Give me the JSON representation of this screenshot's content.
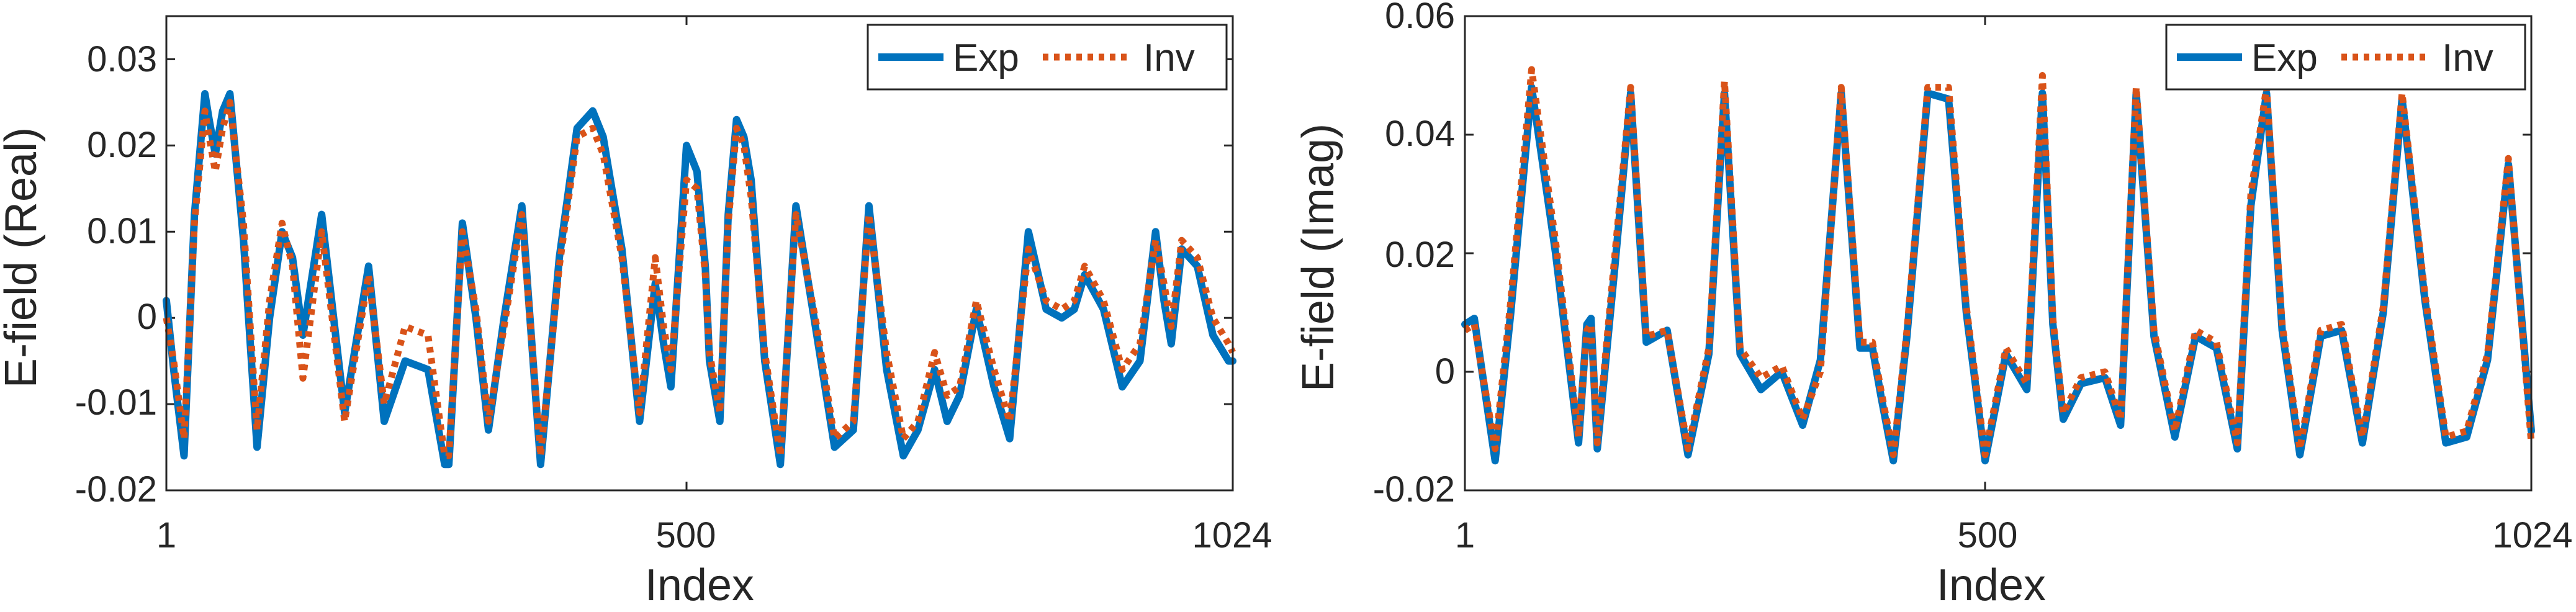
{
  "chart_data": [
    {
      "type": "line",
      "title": "",
      "xlabel": "Index",
      "ylabel": "E-field (Real)",
      "xlim": [
        1,
        1024
      ],
      "ylim": [
        -0.02,
        0.035
      ],
      "xticks": [
        1,
        500,
        1024
      ],
      "xtick_labels": [
        "1",
        "500",
        "1024"
      ],
      "yticks": [
        -0.02,
        -0.01,
        0,
        0.01,
        0.02,
        0.03
      ],
      "ytick_labels": [
        "-0.02",
        "-0.01",
        "0",
        "0.01",
        "0.02",
        "0.03"
      ],
      "grid": false,
      "legend_position": "top-right",
      "series": [
        {
          "name": "Exp",
          "color": "#0072BD",
          "style": "solid",
          "x": [
            1,
            8,
            18,
            28,
            38,
            42,
            48,
            55,
            62,
            75,
            88,
            100,
            112,
            122,
            132,
            150,
            172,
            195,
            210,
            230,
            252,
            268,
            272,
            285,
            298,
            310,
            325,
            342,
            360,
            378,
            395,
            410,
            420,
            438,
            455,
            470,
            478,
            485,
            500,
            510,
            518,
            522,
            532,
            540,
            548,
            555,
            562,
            575,
            590,
            605,
            625,
            642,
            660,
            675,
            692,
            708,
            722,
            738,
            750,
            762,
            778,
            795,
            810,
            828,
            845,
            860,
            872,
            882,
            900,
            918,
            935,
            950,
            958,
            965,
            975,
            990,
            1005,
            1020,
            1024
          ],
          "y": [
            0.002,
            -0.006,
            -0.016,
            0.012,
            0.026,
            0.023,
            0.019,
            0.024,
            0.026,
            0.009,
            -0.015,
            0.0,
            0.01,
            0.007,
            -0.002,
            0.012,
            -0.011,
            0.006,
            -0.012,
            -0.005,
            -0.006,
            -0.017,
            -0.017,
            0.011,
            0.0,
            -0.013,
            0.0,
            0.013,
            -0.017,
            0.007,
            0.022,
            0.024,
            0.021,
            0.008,
            -0.012,
            0.004,
            -0.003,
            -0.008,
            0.02,
            0.017,
            0.006,
            -0.005,
            -0.012,
            0.012,
            0.023,
            0.021,
            0.016,
            -0.005,
            -0.017,
            0.013,
            -0.002,
            -0.015,
            -0.013,
            0.013,
            -0.006,
            -0.016,
            -0.013,
            -0.006,
            -0.012,
            -0.009,
            0.001,
            -0.008,
            -0.014,
            0.01,
            0.001,
            0.0,
            0.001,
            0.005,
            0.001,
            -0.008,
            -0.005,
            0.01,
            0.002,
            -0.003,
            0.008,
            0.006,
            -0.002,
            -0.005,
            -0.005
          ]
        },
        {
          "name": "Inv",
          "color": "#D95319",
          "style": "dotted",
          "x": [
            1,
            8,
            18,
            28,
            38,
            42,
            48,
            55,
            62,
            75,
            88,
            100,
            112,
            122,
            132,
            150,
            172,
            195,
            210,
            230,
            252,
            268,
            272,
            285,
            298,
            310,
            325,
            342,
            360,
            378,
            395,
            410,
            420,
            438,
            455,
            470,
            478,
            485,
            500,
            510,
            518,
            522,
            532,
            540,
            548,
            555,
            562,
            575,
            590,
            605,
            625,
            642,
            660,
            675,
            692,
            708,
            722,
            738,
            750,
            762,
            778,
            795,
            810,
            828,
            845,
            860,
            872,
            882,
            900,
            918,
            935,
            950,
            958,
            965,
            975,
            990,
            1005,
            1020,
            1024
          ],
          "y": [
            0.0,
            -0.005,
            -0.014,
            0.011,
            0.024,
            0.021,
            0.017,
            0.022,
            0.025,
            0.011,
            -0.013,
            0.002,
            0.011,
            0.006,
            -0.007,
            0.01,
            -0.012,
            0.005,
            -0.01,
            -0.001,
            -0.002,
            -0.016,
            -0.016,
            0.01,
            0.001,
            -0.012,
            -0.001,
            0.012,
            -0.016,
            0.006,
            0.021,
            0.022,
            0.019,
            0.007,
            -0.011,
            0.007,
            -0.001,
            -0.006,
            0.016,
            0.015,
            0.005,
            -0.004,
            -0.011,
            0.011,
            0.022,
            0.02,
            0.014,
            -0.004,
            -0.016,
            0.012,
            -0.001,
            -0.014,
            -0.012,
            0.012,
            -0.004,
            -0.014,
            -0.012,
            -0.004,
            -0.009,
            -0.008,
            0.002,
            -0.006,
            -0.012,
            0.008,
            0.002,
            0.001,
            0.002,
            0.006,
            0.002,
            -0.006,
            -0.003,
            0.009,
            0.004,
            -0.001,
            0.009,
            0.007,
            0.0,
            -0.003,
            -0.004
          ]
        }
      ]
    },
    {
      "type": "line",
      "title": "",
      "xlabel": "Index",
      "ylabel": "E-field (Imag)",
      "xlim": [
        1,
        1024
      ],
      "ylim": [
        -0.02,
        0.06
      ],
      "xticks": [
        1,
        500,
        1024
      ],
      "xtick_labels": [
        "1",
        "500",
        "1024"
      ],
      "yticks": [
        -0.02,
        0,
        0.02,
        0.04,
        0.06
      ],
      "ytick_labels": [
        "-0.02",
        "0",
        "0.02",
        "0.04",
        "0.06"
      ],
      "grid": false,
      "legend_position": "top-right",
      "series": [
        {
          "name": "Exp",
          "color": "#0072BD",
          "style": "solid",
          "x": [
            1,
            10,
            30,
            45,
            65,
            88,
            110,
            118,
            122,
            128,
            145,
            160,
            175,
            195,
            215,
            235,
            250,
            265,
            285,
            305,
            325,
            342,
            362,
            380,
            392,
            400,
            412,
            425,
            445,
            465,
            482,
            500,
            520,
            540,
            555,
            565,
            575,
            592,
            615,
            630,
            645,
            662,
            682,
            702,
            722,
            742,
            755,
            770,
            785,
            802,
            822,
            842,
            862,
            882,
            900,
            922,
            942,
            962,
            982,
            1002,
            1024
          ],
          "y": [
            0.008,
            0.009,
            -0.015,
            0.01,
            0.048,
            0.02,
            -0.012,
            0.008,
            0.009,
            -0.013,
            0.018,
            0.047,
            0.005,
            0.007,
            -0.014,
            0.003,
            0.047,
            0.003,
            -0.003,
            0.0,
            -0.009,
            0.002,
            0.047,
            0.004,
            0.004,
            -0.004,
            -0.015,
            0.006,
            0.047,
            0.046,
            0.01,
            -0.015,
            0.003,
            -0.003,
            0.047,
            0.008,
            -0.008,
            -0.002,
            -0.001,
            -0.009,
            0.047,
            0.006,
            -0.011,
            0.006,
            0.004,
            -0.013,
            0.028,
            0.047,
            0.007,
            -0.014,
            0.006,
            0.007,
            -0.012,
            0.01,
            0.046,
            0.012,
            -0.012,
            -0.011,
            0.002,
            0.035,
            -0.01
          ]
        },
        {
          "name": "Inv",
          "color": "#D95319",
          "style": "dotted",
          "x": [
            1,
            10,
            30,
            45,
            65,
            88,
            110,
            118,
            122,
            128,
            145,
            160,
            175,
            195,
            215,
            235,
            250,
            265,
            285,
            305,
            325,
            342,
            362,
            380,
            392,
            400,
            412,
            425,
            445,
            465,
            482,
            500,
            520,
            540,
            555,
            565,
            575,
            592,
            615,
            630,
            645,
            662,
            682,
            702,
            722,
            742,
            755,
            770,
            785,
            802,
            822,
            842,
            862,
            882,
            900,
            922,
            942,
            962,
            982,
            1002,
            1024
          ],
          "y": [
            0.007,
            0.008,
            -0.013,
            0.012,
            0.051,
            0.022,
            -0.011,
            0.007,
            0.008,
            -0.012,
            0.02,
            0.048,
            0.006,
            0.007,
            -0.013,
            0.004,
            0.049,
            0.004,
            -0.001,
            0.001,
            -0.008,
            0.0,
            0.048,
            0.005,
            0.005,
            -0.003,
            -0.014,
            0.007,
            0.048,
            0.048,
            0.011,
            -0.014,
            0.004,
            -0.002,
            0.05,
            0.009,
            -0.007,
            -0.001,
            0.0,
            -0.008,
            0.048,
            0.007,
            -0.01,
            0.007,
            0.005,
            -0.012,
            0.03,
            0.048,
            0.008,
            -0.013,
            0.007,
            0.008,
            -0.011,
            0.011,
            0.047,
            0.013,
            -0.011,
            -0.01,
            0.003,
            0.036,
            -0.012
          ]
        }
      ]
    }
  ]
}
